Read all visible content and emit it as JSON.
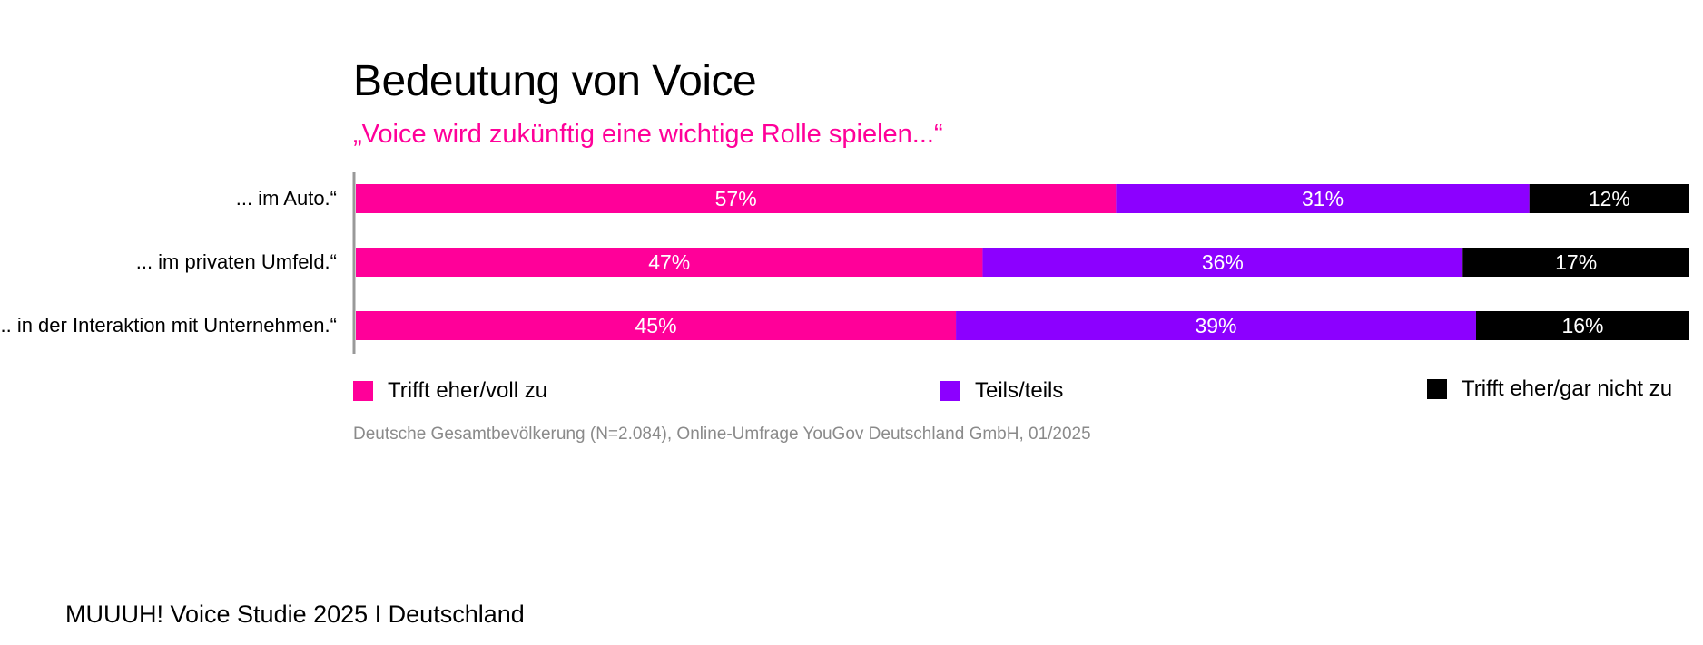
{
  "chart_data": {
    "type": "bar",
    "orientation": "horizontal",
    "stacked": true,
    "title": "Bedeutung von Voice",
    "subtitle": "„Voice wird zukünftig eine wichtige Rolle spielen...“",
    "categories": [
      "... im Auto.“",
      "... im privaten Umfeld.“",
      "... in der Interaktion mit Unternehmen.“"
    ],
    "series": [
      {
        "name": "Trifft eher/voll zu",
        "color": "#ff0099",
        "values": [
          57,
          47,
          45
        ],
        "labels": [
          "57%",
          "47%",
          "45%"
        ]
      },
      {
        "name": "Teils/teils",
        "color": "#8c00ff",
        "values": [
          31,
          36,
          39
        ],
        "labels": [
          "31%",
          "36%",
          "39%"
        ]
      },
      {
        "name": "Trifft eher/gar nicht zu",
        "color": "#000000",
        "values": [
          12,
          17,
          16
        ],
        "labels": [
          "12%",
          "17%",
          "16%"
        ]
      }
    ],
    "xlim": [
      0,
      100
    ],
    "legend_position": "bottom",
    "grid": false
  },
  "source": "Deutsche Gesamtbevölkerung (N=2.084), Online-Umfrage YouGov Deutschland GmbH, 01/2025",
  "footer": "MUUUH! Voice Studie 2025 I Deutschland",
  "colors": {
    "accent": "#ff0099",
    "source_text": "#8a8a8a",
    "axis": "#999999"
  }
}
